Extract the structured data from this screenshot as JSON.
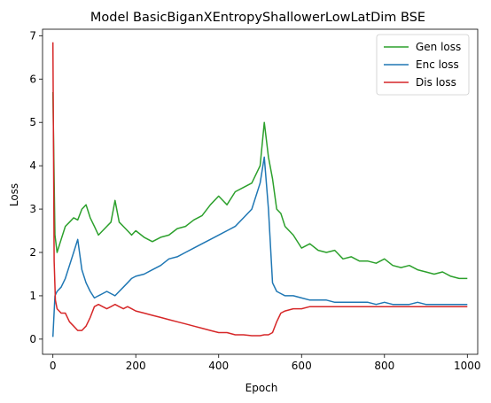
{
  "chart_data": {
    "type": "line",
    "title": "Model BasicBiganXEntropyShallowerLowLatDim BSE",
    "xlabel": "Epoch",
    "ylabel": "Loss",
    "xlim": [
      -25,
      1025
    ],
    "ylim": [
      -0.35,
      7.15
    ],
    "xticks": [
      0,
      200,
      400,
      600,
      800,
      1000
    ],
    "yticks": [
      0,
      1,
      2,
      3,
      4,
      5,
      6,
      7
    ],
    "grid": false,
    "legend_position": "top-right",
    "series": [
      {
        "name": "Gen loss",
        "color": "#2ca02c",
        "x": [
          0,
          5,
          10,
          20,
          30,
          40,
          50,
          60,
          70,
          80,
          90,
          100,
          110,
          120,
          130,
          140,
          150,
          160,
          170,
          180,
          190,
          200,
          220,
          240,
          260,
          280,
          300,
          320,
          340,
          360,
          380,
          400,
          420,
          440,
          460,
          480,
          500,
          510,
          520,
          530,
          540,
          550,
          560,
          580,
          600,
          620,
          640,
          660,
          680,
          700,
          720,
          740,
          760,
          780,
          800,
          820,
          840,
          860,
          880,
          900,
          920,
          940,
          960,
          980,
          1000
        ],
        "y": [
          5.7,
          2.4,
          2.0,
          2.3,
          2.6,
          2.7,
          2.8,
          2.75,
          3.0,
          3.1,
          2.8,
          2.6,
          2.4,
          2.5,
          2.6,
          2.7,
          3.2,
          2.7,
          2.6,
          2.5,
          2.4,
          2.5,
          2.35,
          2.25,
          2.35,
          2.4,
          2.55,
          2.6,
          2.75,
          2.85,
          3.1,
          3.3,
          3.1,
          3.4,
          3.5,
          3.6,
          4.0,
          5.0,
          4.2,
          3.7,
          3.0,
          2.9,
          2.6,
          2.4,
          2.1,
          2.2,
          2.05,
          2.0,
          2.05,
          1.85,
          1.9,
          1.8,
          1.8,
          1.75,
          1.85,
          1.7,
          1.65,
          1.7,
          1.6,
          1.55,
          1.5,
          1.55,
          1.45,
          1.4,
          1.4
        ]
      },
      {
        "name": "Enc loss",
        "color": "#1f77b4",
        "x": [
          0,
          5,
          10,
          20,
          30,
          40,
          50,
          60,
          70,
          80,
          90,
          100,
          110,
          120,
          130,
          140,
          150,
          160,
          170,
          180,
          190,
          200,
          220,
          240,
          260,
          280,
          300,
          320,
          340,
          360,
          380,
          400,
          420,
          440,
          460,
          480,
          500,
          510,
          520,
          530,
          540,
          550,
          560,
          580,
          600,
          620,
          640,
          660,
          680,
          700,
          720,
          740,
          760,
          780,
          800,
          820,
          840,
          860,
          880,
          900,
          920,
          940,
          960,
          980,
          1000
        ],
        "y": [
          0.05,
          1.0,
          1.1,
          1.2,
          1.4,
          1.7,
          2.0,
          2.3,
          1.6,
          1.3,
          1.1,
          0.95,
          1.0,
          1.05,
          1.1,
          1.05,
          1.0,
          1.1,
          1.2,
          1.3,
          1.4,
          1.45,
          1.5,
          1.6,
          1.7,
          1.85,
          1.9,
          2.0,
          2.1,
          2.2,
          2.3,
          2.4,
          2.5,
          2.6,
          2.8,
          3.0,
          3.6,
          4.2,
          3.0,
          1.3,
          1.1,
          1.05,
          1.0,
          1.0,
          0.95,
          0.9,
          0.9,
          0.9,
          0.85,
          0.85,
          0.85,
          0.85,
          0.85,
          0.8,
          0.85,
          0.8,
          0.8,
          0.8,
          0.85,
          0.8,
          0.8,
          0.8,
          0.8,
          0.8,
          0.8
        ]
      },
      {
        "name": "Dis loss",
        "color": "#d62728",
        "x": [
          0,
          3,
          6,
          10,
          20,
          30,
          40,
          50,
          60,
          70,
          80,
          90,
          100,
          110,
          120,
          130,
          140,
          150,
          160,
          170,
          180,
          190,
          200,
          220,
          240,
          260,
          280,
          300,
          320,
          340,
          360,
          380,
          400,
          420,
          440,
          460,
          480,
          500,
          510,
          520,
          530,
          540,
          550,
          560,
          580,
          600,
          620,
          640,
          660,
          680,
          700,
          720,
          740,
          760,
          780,
          800,
          820,
          840,
          860,
          880,
          900,
          920,
          940,
          960,
          980,
          1000
        ],
        "y": [
          6.85,
          1.8,
          0.9,
          0.7,
          0.6,
          0.6,
          0.4,
          0.3,
          0.2,
          0.2,
          0.3,
          0.5,
          0.75,
          0.8,
          0.75,
          0.7,
          0.75,
          0.8,
          0.75,
          0.7,
          0.75,
          0.7,
          0.65,
          0.6,
          0.55,
          0.5,
          0.45,
          0.4,
          0.35,
          0.3,
          0.25,
          0.2,
          0.15,
          0.15,
          0.1,
          0.1,
          0.08,
          0.08,
          0.1,
          0.1,
          0.15,
          0.4,
          0.6,
          0.65,
          0.7,
          0.7,
          0.75,
          0.75,
          0.75,
          0.75,
          0.75,
          0.75,
          0.75,
          0.75,
          0.75,
          0.75,
          0.75,
          0.75,
          0.75,
          0.75,
          0.75,
          0.75,
          0.75,
          0.75,
          0.75,
          0.75
        ]
      }
    ]
  }
}
